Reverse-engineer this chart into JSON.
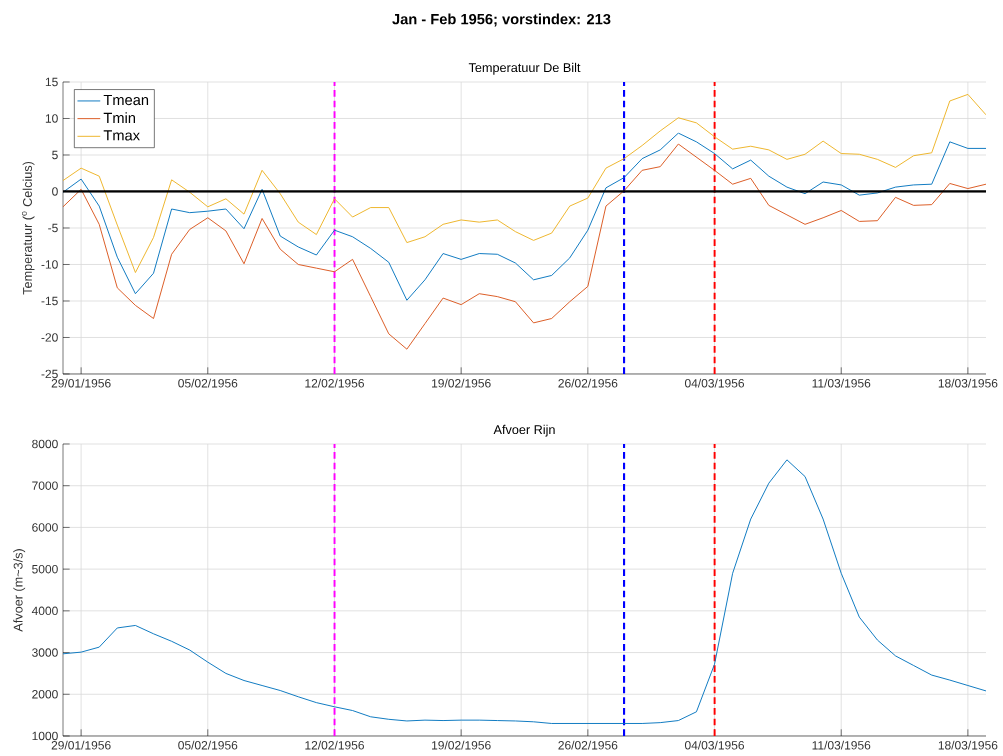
{
  "chart_data": [
    {
      "type": "line",
      "title": "Jan - Feb 1956; vorstindex: 213",
      "subtitle": "Temperatuur De Bilt",
      "ylabel": "Temperatuur ($^{o}$ Celcius)",
      "x": [
        "1956-01-28",
        "1956-01-29",
        "1956-01-30",
        "1956-01-31",
        "1956-02-01",
        "1956-02-02",
        "1956-02-03",
        "1956-02-04",
        "1956-02-05",
        "1956-02-06",
        "1956-02-07",
        "1956-02-08",
        "1956-02-09",
        "1956-02-10",
        "1956-02-11",
        "1956-02-12",
        "1956-02-13",
        "1956-02-14",
        "1956-02-15",
        "1956-02-16",
        "1956-02-17",
        "1956-02-18",
        "1956-02-19",
        "1956-02-20",
        "1956-02-21",
        "1956-02-22",
        "1956-02-23",
        "1956-02-24",
        "1956-02-25",
        "1956-02-26",
        "1956-02-27",
        "1956-02-28",
        "1956-02-29",
        "1956-03-01",
        "1956-03-02",
        "1956-03-03",
        "1956-03-04",
        "1956-03-05",
        "1956-03-06",
        "1956-03-07",
        "1956-03-08",
        "1956-03-09",
        "1956-03-10",
        "1956-03-11",
        "1956-03-12",
        "1956-03-13",
        "1956-03-14",
        "1956-03-15",
        "1956-03-16",
        "1956-03-17",
        "1956-03-18",
        "1956-03-19"
      ],
      "series": [
        {
          "name": "Tmean",
          "color": "#0072bd",
          "values": [
            -0.1,
            1.7,
            -2.0,
            -9.0,
            -14.0,
            -11.2,
            -2.4,
            -2.9,
            -2.7,
            -2.4,
            -5.1,
            0.3,
            -6.1,
            -7.6,
            -8.7,
            -5.3,
            -6.2,
            -7.8,
            -9.7,
            -14.9,
            -12.1,
            -8.5,
            -9.3,
            -8.5,
            -8.6,
            -9.8,
            -12.1,
            -11.5,
            -9.1,
            -5.3,
            0.5,
            1.9,
            4.5,
            5.7,
            8.0,
            6.8,
            5.2,
            3.1,
            4.3,
            2.1,
            0.6,
            -0.3,
            1.3,
            0.9,
            -0.5,
            -0.2,
            0.6,
            0.9,
            1.0,
            6.8,
            5.9,
            5.9
          ]
        },
        {
          "name": "Tmin",
          "color": "#d95319",
          "values": [
            -2.1,
            0.3,
            -4.5,
            -13.2,
            -15.6,
            -17.4,
            -8.6,
            -5.2,
            -3.6,
            -5.4,
            -9.9,
            -3.7,
            -7.9,
            -10.0,
            -10.5,
            -11.0,
            -9.3,
            -14.4,
            -19.5,
            -21.6,
            -18.1,
            -14.6,
            -15.5,
            -14.0,
            -14.4,
            -15.1,
            -18.0,
            -17.4,
            -15.1,
            -13.0,
            -2.0,
            0.1,
            2.9,
            3.4,
            6.5,
            4.7,
            2.9,
            1.0,
            1.8,
            -1.9,
            -3.2,
            -4.5,
            -3.6,
            -2.6,
            -4.1,
            -4.0,
            -0.8,
            -1.9,
            -1.8,
            1.1,
            0.4,
            1.0
          ]
        },
        {
          "name": "Tmax",
          "color": "#edb120",
          "values": [
            1.5,
            3.2,
            2.1,
            -4.6,
            -11.1,
            -6.3,
            1.6,
            -0.1,
            -2.1,
            -1.0,
            -3.1,
            2.9,
            -0.3,
            -4.2,
            -5.9,
            -1.0,
            -3.5,
            -2.2,
            -2.2,
            -7.0,
            -6.2,
            -4.5,
            -3.9,
            -4.2,
            -3.9,
            -5.5,
            -6.7,
            -5.7,
            -2.0,
            -0.9,
            3.2,
            4.5,
            6.3,
            8.3,
            10.1,
            9.4,
            7.5,
            5.8,
            6.2,
            5.7,
            4.4,
            5.1,
            6.9,
            5.2,
            5.1,
            4.4,
            3.3,
            4.9,
            5.3,
            12.4,
            13.3,
            10.5
          ]
        }
      ],
      "xlim": [
        "1956-01-28",
        "1956-03-19"
      ],
      "xticks": [
        {
          "value": "1956-01-29",
          "label": "29/01/1956"
        },
        {
          "value": "1956-02-05",
          "label": "05/02/1956"
        },
        {
          "value": "1956-02-12",
          "label": "12/02/1956"
        },
        {
          "value": "1956-02-19",
          "label": "19/02/1956"
        },
        {
          "value": "1956-02-26",
          "label": "26/02/1956"
        },
        {
          "value": "1956-03-04",
          "label": "04/03/1956"
        },
        {
          "value": "1956-03-11",
          "label": "11/03/1956"
        },
        {
          "value": "1956-03-18",
          "label": "18/03/1956"
        }
      ],
      "ylim": [
        -25,
        15
      ],
      "yticks": [
        -25,
        -20,
        -15,
        -10,
        -5,
        0,
        5,
        10,
        15
      ],
      "grid": true,
      "legend": "top left",
      "ref_lines": [
        {
          "axis": "x",
          "value": "1956-02-12",
          "color": "#ff00ff",
          "line_style": "dashed"
        },
        {
          "axis": "x",
          "value": "1956-02-28",
          "color": "#0000ff",
          "line_style": "dashed"
        },
        {
          "axis": "x",
          "value": "1956-03-04",
          "color": "#ff0000",
          "line_style": "dashed"
        },
        {
          "axis": "y",
          "value": 0,
          "color": "#000000",
          "line_style": "solid"
        }
      ]
    },
    {
      "type": "line",
      "title": "Afvoer Rijn",
      "ylabel": "Afvoer (m~3/s)",
      "x": [
        "1956-01-28",
        "1956-01-29",
        "1956-01-30",
        "1956-01-31",
        "1956-02-01",
        "1956-02-02",
        "1956-02-03",
        "1956-02-04",
        "1956-02-05",
        "1956-02-06",
        "1956-02-07",
        "1956-02-08",
        "1956-02-09",
        "1956-02-10",
        "1956-02-11",
        "1956-02-12",
        "1956-02-13",
        "1956-02-14",
        "1956-02-15",
        "1956-02-16",
        "1956-02-17",
        "1956-02-18",
        "1956-02-19",
        "1956-02-20",
        "1956-02-21",
        "1956-02-22",
        "1956-02-23",
        "1956-02-24",
        "1956-02-25",
        "1956-02-26",
        "1956-02-27",
        "1956-02-28",
        "1956-02-29",
        "1956-03-01",
        "1956-03-02",
        "1956-03-03",
        "1956-03-04",
        "1956-03-05",
        "1956-03-06",
        "1956-03-07",
        "1956-03-08",
        "1956-03-09",
        "1956-03-10",
        "1956-03-11",
        "1956-03-12",
        "1956-03-13",
        "1956-03-14",
        "1956-03-15",
        "1956-03-16",
        "1956-03-17",
        "1956-03-18",
        "1956-03-19"
      ],
      "series": [
        {
          "color": "#0072bd",
          "values": [
            2970,
            3010,
            3130,
            3590,
            3650,
            3450,
            3270,
            3060,
            2770,
            2500,
            2330,
            2210,
            2090,
            1940,
            1800,
            1700,
            1610,
            1460,
            1400,
            1360,
            1380,
            1370,
            1380,
            1380,
            1370,
            1360,
            1340,
            1300,
            1300,
            1300,
            1300,
            1300,
            1300,
            1320,
            1370,
            1580,
            2720,
            4900,
            6200,
            7060,
            7620,
            7220,
            6200,
            4900,
            3850,
            3300,
            2920,
            2690,
            2460,
            2340,
            2210,
            2080
          ]
        }
      ],
      "xlim": [
        "1956-01-28",
        "1956-03-19"
      ],
      "xticks": [
        {
          "value": "1956-01-29",
          "label": "29/01/1956"
        },
        {
          "value": "1956-02-05",
          "label": "05/02/1956"
        },
        {
          "value": "1956-02-12",
          "label": "12/02/1956"
        },
        {
          "value": "1956-02-19",
          "label": "19/02/1956"
        },
        {
          "value": "1956-02-26",
          "label": "26/02/1956"
        },
        {
          "value": "1956-03-04",
          "label": "04/03/1956"
        },
        {
          "value": "1956-03-11",
          "label": "11/03/1956"
        },
        {
          "value": "1956-03-18",
          "label": "18/03/1956"
        }
      ],
      "ylim": [
        1000,
        8000
      ],
      "yticks": [
        1000,
        2000,
        3000,
        4000,
        5000,
        6000,
        7000,
        8000
      ],
      "grid": true,
      "ref_lines": [
        {
          "axis": "x",
          "value": "1956-02-12",
          "color": "#ff00ff",
          "line_style": "dashed"
        },
        {
          "axis": "x",
          "value": "1956-02-28",
          "color": "#0000ff",
          "line_style": "dashed"
        },
        {
          "axis": "x",
          "value": "1956-03-04",
          "color": "#ff0000",
          "line_style": "dashed"
        }
      ]
    }
  ]
}
